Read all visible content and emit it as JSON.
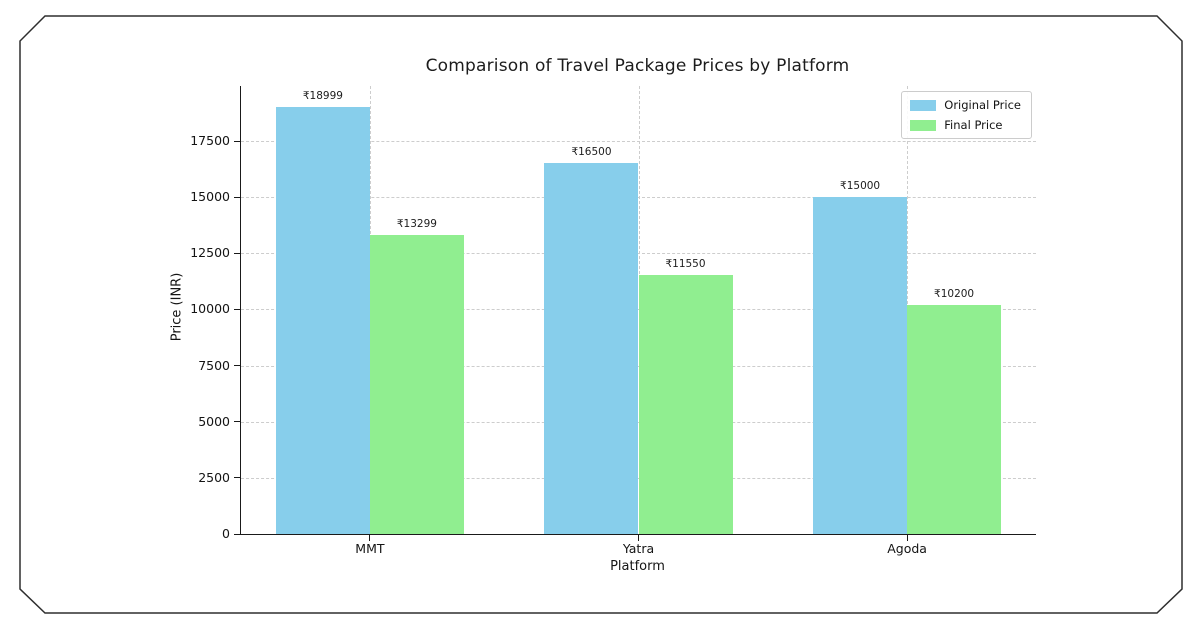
{
  "chart_data": {
    "type": "bar",
    "title": "Comparison of Travel Package Prices by Platform",
    "xlabel": "Platform",
    "ylabel": "Price (INR)",
    "categories": [
      "MMT",
      "Yatra",
      "Agoda"
    ],
    "series": [
      {
        "name": "Original Price",
        "color": "#87CEEB",
        "values": [
          18999,
          16500,
          15000
        ]
      },
      {
        "name": "Final Price",
        "color": "#90EE90",
        "values": [
          13299,
          11550,
          10200
        ]
      }
    ],
    "bar_value_labels": [
      [
        "₹18999",
        "₹16500",
        "₹15000"
      ],
      [
        "₹13299",
        "₹11550",
        "₹10200"
      ]
    ],
    "currency_prefix": "₹",
    "yticks": [
      0,
      2500,
      5000,
      7500,
      10000,
      12500,
      15000,
      17500
    ],
    "ylim": [
      0,
      19950
    ],
    "bar_width_fraction": 0.35,
    "grid": true,
    "grid_style": "dashed",
    "legend_position": "upper right",
    "legend_labels": [
      "Original Price",
      "Final Price"
    ]
  }
}
